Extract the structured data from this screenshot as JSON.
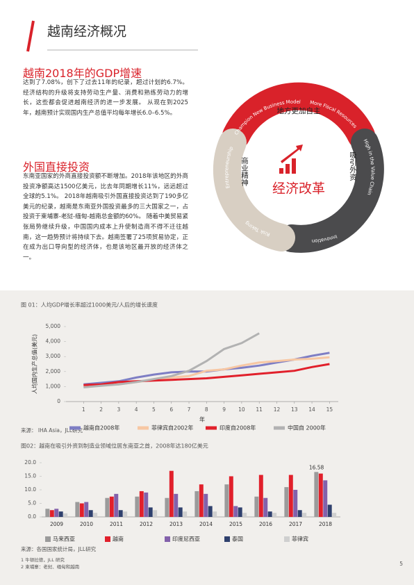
{
  "header": {
    "title": "越南经济概况"
  },
  "sections": [
    {
      "heading": "越南2018年的GDP增速",
      "text": "达到了7.08%，创下了过去11年的纪录，超过计划的6.7%。 经济结构的升级将支持劳动生产量、消费和熟练劳动力的增长，这些都会促进越南经济的进一步发展。 从现在到2025年，越南预计实现国内生产总值平均每年增长6.0–6.5%。"
    },
    {
      "heading": "外国直接投资",
      "text": "东南亚国家的外商直接投资额不断增加。2018年该地区的外商投资净额高达1500亿美元，比去年同期增长11%，远远超过全球的5.1%。 2018年越南吸引外国直接投资达到了190多亿美元的纪录，越南是东南亚外国投资最多的三大国家之一，占投资于柬埔寨-老挝-缅甸-越南总金额的60%。 随着中美贸易紧张局势继续升级，中国国内成本上升使制造商不得不迁往越南，这一趋势预计将持续下去。越南签署了25项贸易协定，正在成为出口导向型的经济体，也是该地区最开放的经济体之一。"
    }
  ],
  "diagram": {
    "center": "经济改革",
    "inner": [
      "地方更加自主",
      "吸引外资",
      "商业精神"
    ],
    "arcs": [
      "Champion New Business Model",
      "More Fiscal Resources",
      "High in the Value Chain",
      "Innovation",
      "Risk Taking",
      "Entrepreneurship"
    ]
  },
  "chart_data": [
    {
      "type": "line",
      "title": "图 01：人均GDP增长率超过1000美元/人后的增长速度",
      "x_label": "年",
      "y_label": "人均国内生产总值(美元)",
      "x": [
        1,
        2,
        3,
        4,
        5,
        6,
        7,
        8,
        9,
        10,
        11,
        12,
        13,
        14,
        15
      ],
      "xlim": [
        0,
        15.5
      ],
      "xticks": [
        1,
        2,
        3,
        4,
        5,
        6,
        7,
        8,
        9,
        10,
        11,
        12,
        13,
        14,
        15
      ],
      "ylim": [
        0,
        5000
      ],
      "yticks": [
        0,
        {
          "value": 1000,
          "label": "1,000"
        },
        {
          "value": 2000,
          "label": "2,000"
        },
        {
          "value": 3000,
          "label": "3,000"
        },
        {
          "value": 4000,
          "label": "4,000"
        },
        {
          "value": 5000,
          "label": "5,000"
        }
      ],
      "grid": false,
      "series": [
        {
          "name": "越南自2008年",
          "color": "#7e7ec4",
          "values": [
            1150,
            1250,
            1350,
            1600,
            1800,
            1950,
            2000,
            2000,
            2150,
            2250,
            2400,
            2600,
            2800,
            3050,
            3250
          ]
        },
        {
          "name": "菲律宾自2002年",
          "color": "#f7c7a3",
          "values": [
            1050,
            1100,
            1150,
            1300,
            1450,
            1600,
            1700,
            2050,
            2150,
            2400,
            2600,
            2700,
            2800,
            2850,
            2950
          ]
        },
        {
          "name": "印度自2008年",
          "color": "#e1202b",
          "values": [
            1100,
            1150,
            1300,
            1350,
            1400,
            1450,
            1500,
            1550,
            1650,
            1750,
            1850,
            1950,
            2050,
            2300,
            2500
          ]
        },
        {
          "name": "中国自 2000年",
          "color": "#b2b2b2",
          "values": [
            950,
            1050,
            1150,
            1300,
            1500,
            1700,
            2050,
            2700,
            3500,
            3900,
            4550,
            null,
            null,
            null,
            null
          ]
        }
      ],
      "source": "来源： IHA Asia，JLL研究"
    },
    {
      "type": "bar",
      "title": "图02：越南在吸引外资到制造业领域位居东南亚之首，2008年达180亿美元",
      "categories": [
        "2009",
        "2010",
        "2011",
        "2012",
        "2013",
        "2014",
        "2015",
        "2016",
        "2017",
        "2018"
      ],
      "ylim": [
        0,
        20
      ],
      "yticks": [
        {
          "value": 0,
          "label": "0.0"
        },
        {
          "value": 5,
          "label": "5.0"
        },
        {
          "value": 10,
          "label": "10.0"
        },
        {
          "value": 15,
          "label": "15.0"
        },
        {
          "value": 20,
          "label": "20.0"
        }
      ],
      "grid": false,
      "series": [
        {
          "name": "马来西亚",
          "color": "#9b9b9b",
          "values": [
            3.0,
            5.5,
            7.0,
            7.5,
            7.0,
            9.5,
            12.0,
            7.5,
            11.0,
            16.58
          ],
          "value_labels": [
            null,
            null,
            null,
            null,
            null,
            null,
            null,
            null,
            null,
            "16.58"
          ]
        },
        {
          "name": "越南",
          "color": "#e1202b",
          "values": [
            2.5,
            5.0,
            7.5,
            9.5,
            17.0,
            12.0,
            15.0,
            15.5,
            15.5,
            16.0
          ]
        },
        {
          "name": "印度尼西亚",
          "color": "#8361ab",
          "values": [
            3.0,
            5.5,
            8.5,
            9.0,
            8.5,
            8.5,
            4.0,
            7.0,
            10.0,
            13.5
          ]
        },
        {
          "name": "泰国",
          "color": "#2f406d",
          "values": [
            2.0,
            2.5,
            2.5,
            3.5,
            3.5,
            4.0,
            3.5,
            2.0,
            2.5,
            4.5
          ]
        },
        {
          "name": "菲律宾",
          "color": "#cfcfcf",
          "values": [
            1.3,
            1.5,
            2.0,
            2.5,
            2.0,
            2.0,
            1.5,
            1.5,
            1.5,
            1.5
          ]
        }
      ],
      "source": "来源：各国国家统计局，JLL研究"
    }
  ],
  "footnotes": [
    "1 牛顿拉德，JLL 研究",
    "2 柬埔寨：老挝、缅甸和越南"
  ],
  "page_number": "5"
}
